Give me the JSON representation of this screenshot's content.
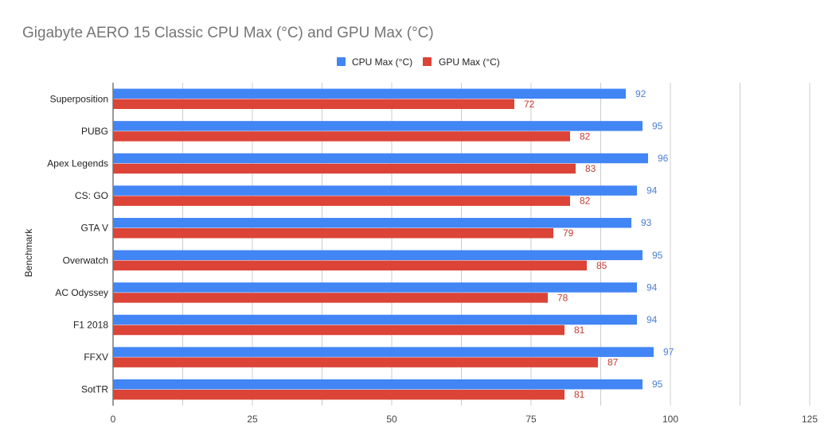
{
  "chart_data": {
    "type": "bar",
    "orientation": "horizontal",
    "title": "Gigabyte AERO 15 Classic CPU Max (°C) and GPU Max (°C)",
    "ylabel": "Benchmark",
    "xlabel": "",
    "xlim": [
      0,
      125
    ],
    "xticks": [
      0,
      25,
      50,
      75,
      100,
      125
    ],
    "grid": true,
    "legend_position": "top-center",
    "categories": [
      "Superposition",
      "PUBG",
      "Apex Legends",
      "CS: GO",
      "GTA V",
      "Overwatch",
      "AC Odyssey",
      "F1 2018",
      "FFXV",
      "SotTR"
    ],
    "series": [
      {
        "name": "CPU Max (°C)",
        "color": "#4285f4",
        "label_color": "#4a7fd6",
        "values": [
          92,
          95,
          96,
          94,
          93,
          95,
          94,
          94,
          97,
          95
        ]
      },
      {
        "name": "GPU Max (°C)",
        "color": "#db4437",
        "label_color": "#c33b30",
        "values": [
          72,
          82,
          83,
          82,
          79,
          85,
          78,
          81,
          87,
          81
        ]
      }
    ]
  }
}
